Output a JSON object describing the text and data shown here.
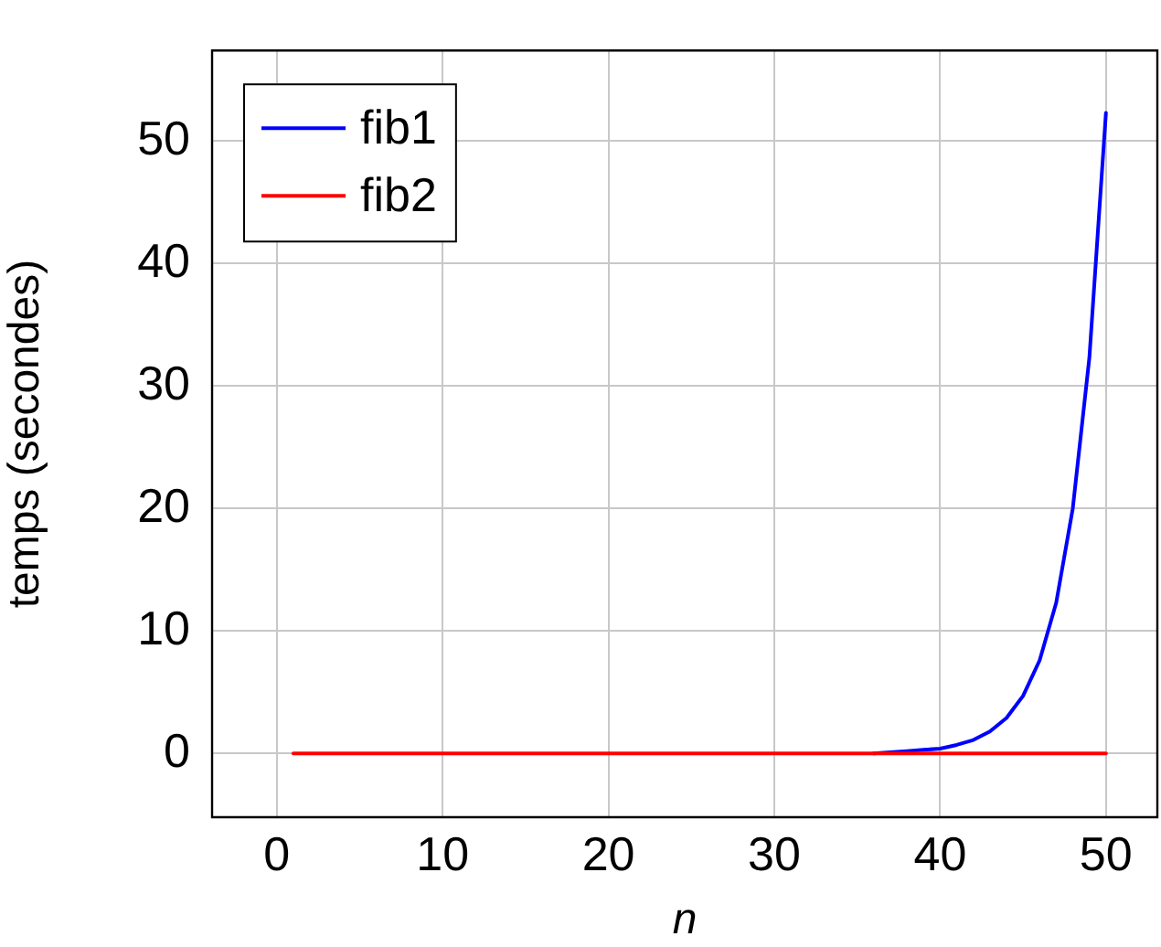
{
  "chart_data": {
    "type": "line",
    "xlabel": "n",
    "ylabel": "temps (secondes)",
    "x": [
      1,
      2,
      3,
      4,
      5,
      6,
      7,
      8,
      9,
      10,
      11,
      12,
      13,
      14,
      15,
      16,
      17,
      18,
      19,
      20,
      21,
      22,
      23,
      24,
      25,
      26,
      27,
      28,
      29,
      30,
      31,
      32,
      33,
      34,
      35,
      36,
      37,
      38,
      39,
      40,
      41,
      42,
      43,
      44,
      45,
      46,
      47,
      48,
      49,
      50
    ],
    "series": [
      {
        "name": "fib1",
        "color": "#0000ff",
        "values": [
          null,
          null,
          null,
          null,
          null,
          null,
          null,
          null,
          null,
          null,
          null,
          null,
          null,
          null,
          null,
          null,
          null,
          null,
          null,
          null,
          null,
          null,
          null,
          null,
          null,
          null,
          null,
          null,
          null,
          null,
          null,
          null,
          null,
          null,
          null,
          0,
          0.1,
          0.2,
          0.3,
          0.4,
          0.7,
          1.1,
          1.8,
          2.9,
          4.7,
          7.6,
          12.3,
          20.0,
          32.3,
          52.3
        ]
      },
      {
        "name": "fib2",
        "color": "#ff0000",
        "values": [
          0,
          0,
          0,
          0,
          0,
          0,
          0,
          0,
          0,
          0,
          0,
          0,
          0,
          0,
          0,
          0,
          0,
          0,
          0,
          0,
          0,
          0,
          0,
          0,
          0,
          0,
          0,
          0,
          0,
          0,
          0,
          0,
          0,
          0,
          0,
          0,
          0,
          0,
          0,
          0,
          0,
          0,
          0,
          0,
          0,
          0,
          0,
          0,
          0,
          0
        ]
      }
    ],
    "xlim": [
      -3.9,
      53.1
    ],
    "ylim": [
      -5.2,
      57.4
    ],
    "xticks": [
      0,
      10,
      20,
      30,
      40,
      50
    ],
    "yticks": [
      0,
      10,
      20,
      30,
      40,
      50
    ],
    "grid": true,
    "legend": "top left",
    "marker": "none",
    "line_style": "solid"
  }
}
